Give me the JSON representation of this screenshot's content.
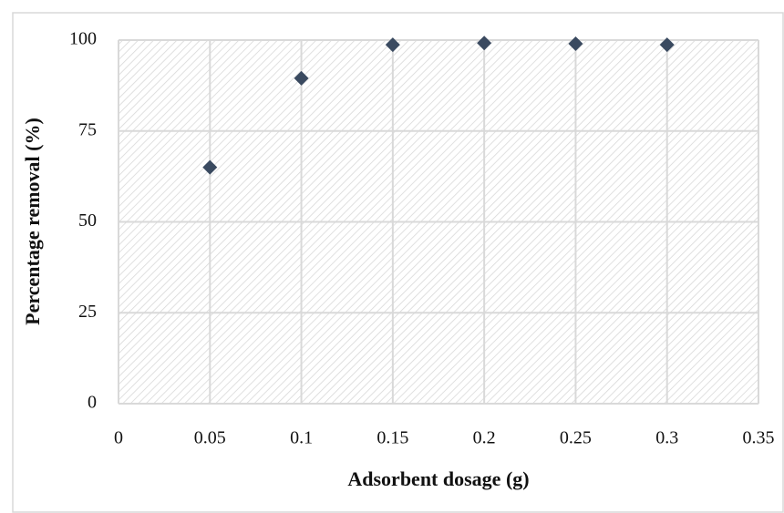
{
  "chart_data": {
    "type": "scatter",
    "x_label": "Adsorbent dosage (g)",
    "y_label": "Percentage removal (%)",
    "x": [
      0.05,
      0.1,
      0.15,
      0.2,
      0.25,
      0.3
    ],
    "values": [
      65,
      89.5,
      98.7,
      99.2,
      99,
      98.7
    ],
    "color": "#3a4a60",
    "xlim": [
      0,
      0.35
    ],
    "xticks": [
      0,
      0.05,
      0.1,
      0.15,
      0.2,
      0.25,
      0.3,
      0.35
    ],
    "ylim": [
      0,
      100
    ],
    "yticks": [
      0,
      25,
      50,
      75,
      100
    ],
    "grid": true
  }
}
